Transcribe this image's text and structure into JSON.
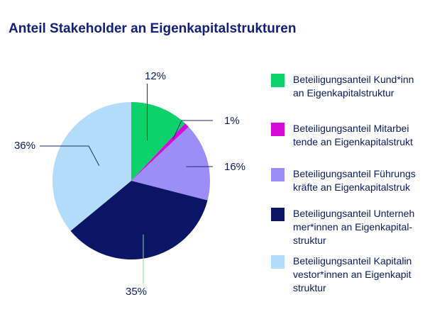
{
  "chart_data": {
    "type": "pie",
    "title": "Anteil Stakeholder an Eigenkapitalstrukturen",
    "slices": [
      {
        "label": "Beteiligungsanteil Kund*innen an Eigenkapitalstruktur",
        "legend_text": "Beteiligungsanteil Kund*inn\nan Eigenkapitalstruktur",
        "value": 12,
        "display": "12%",
        "color": "#0bd26a"
      },
      {
        "label": "Beteiligungsanteil Mitarbeitende an Eigenkapitalstruktur",
        "legend_text": "Beteiligungsanteil Mitarbei\ntende an Eigenkapitalstrukt",
        "value": 1,
        "display": "1%",
        "color": "#d40bd9"
      },
      {
        "label": "Beteiligungsanteil Führungskräfte an Eigenkapitalstruktur",
        "legend_text": "Beteiligungsanteil Führungs\nkräfte an Eigenkapitalstruk",
        "value": 16,
        "display": "16%",
        "color": "#9c8ef6"
      },
      {
        "label": "Beteiligungsanteil Unternehmer*innen an Eigenkapitalstruktur",
        "legend_text": "Beteiligungsanteil Unterneh\nmer*innen an Eigenkapital-\nstruktur",
        "value": 35,
        "display": "35%",
        "color": "#0b1566"
      },
      {
        "label": "Beteiligungsanteil Kapitalinvestor*innen an Eigenkapitalstruktur",
        "legend_text": "Beteiligungsanteil Kapitalin\nvestor*innen an Eigenkapit\nstruktur",
        "value": 36,
        "display": "36%",
        "color": "#b3dcfb"
      }
    ],
    "legend_placement": "right"
  }
}
